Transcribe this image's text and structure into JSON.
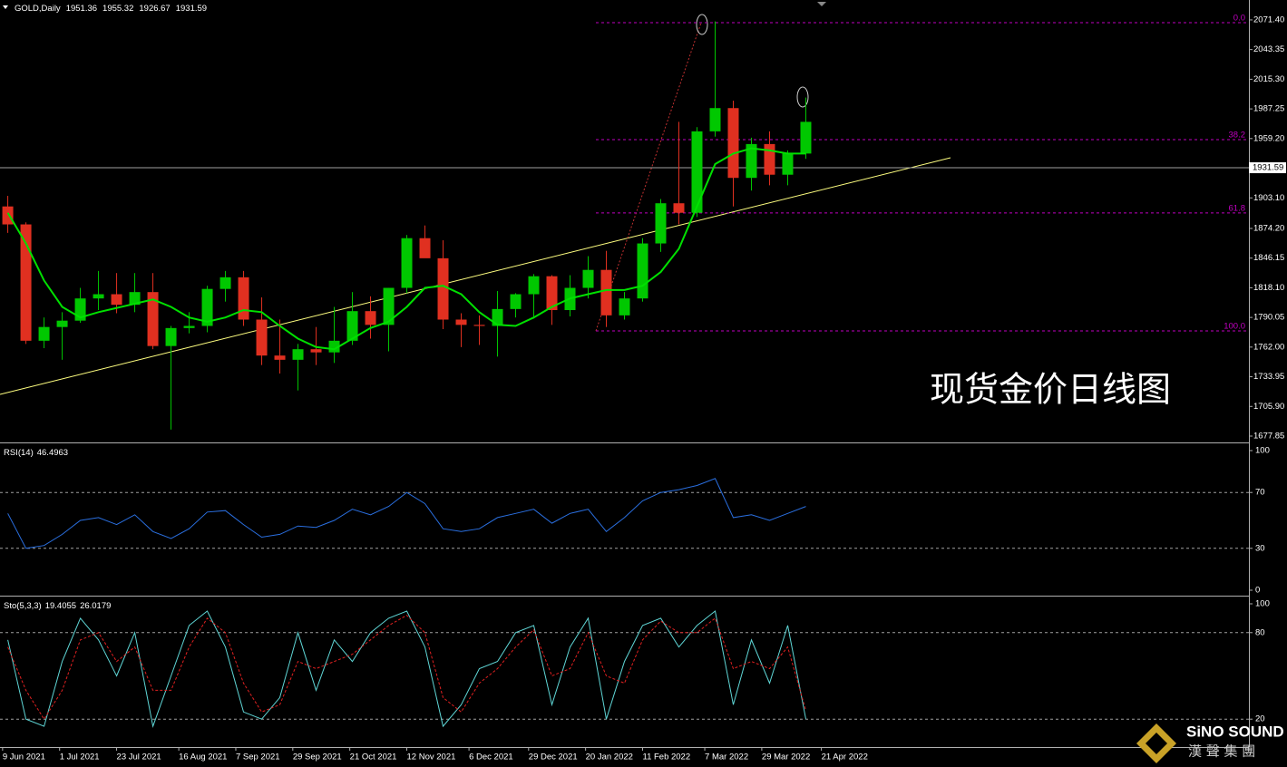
{
  "chart_data": [
    {
      "type": "candlestick",
      "symbol": "GOLD,Daily",
      "ohlc": [
        1951.36,
        1955.32,
        1926.67,
        1931.59
      ],
      "x": [
        "2021-06-11",
        "2021-06-18",
        "2021-06-25",
        "2021-07-02",
        "2021-07-09",
        "2021-07-16",
        "2021-07-23",
        "2021-07-30",
        "2021-08-06",
        "2021-08-13",
        "2021-08-20",
        "2021-08-27",
        "2021-09-03",
        "2021-09-10",
        "2021-09-17",
        "2021-09-24",
        "2021-10-01",
        "2021-10-08",
        "2021-10-15",
        "2021-10-22",
        "2021-10-29",
        "2021-11-05",
        "2021-11-12",
        "2021-11-19",
        "2021-11-26",
        "2021-12-03",
        "2021-12-10",
        "2021-12-17",
        "2021-12-24",
        "2021-12-31",
        "2022-01-07",
        "2022-01-14",
        "2022-01-21",
        "2022-01-28",
        "2022-02-04",
        "2022-02-11",
        "2022-02-18",
        "2022-02-25",
        "2022-03-04",
        "2022-03-11",
        "2022-03-18",
        "2022-03-25",
        "2022-04-01",
        "2022-04-08",
        "2022-04-15"
      ],
      "open": [
        1895,
        1878,
        1768,
        1781,
        1787,
        1808,
        1812,
        1802,
        1814,
        1763,
        1780,
        1782,
        1817,
        1828,
        1788,
        1754,
        1750,
        1760,
        1757,
        1768,
        1796,
        1783,
        1818,
        1865,
        1846,
        1788,
        1783,
        1782,
        1798,
        1812,
        1829,
        1797,
        1818,
        1835,
        1792,
        1808,
        1860,
        1898,
        1889,
        1966,
        1988,
        1922,
        1954,
        1925,
        1945
      ],
      "high": [
        1905,
        1880,
        1790,
        1795,
        1818,
        1834,
        1832,
        1832,
        1832,
        1782,
        1795,
        1820,
        1834,
        1834,
        1809,
        1788,
        1765,
        1781,
        1800,
        1814,
        1810,
        1818,
        1868,
        1877,
        1863,
        1794,
        1792,
        1815,
        1813,
        1831,
        1830,
        1830,
        1848,
        1853,
        1814,
        1865,
        1902,
        1975,
        1970,
        2070,
        1995,
        1960,
        1966,
        1948,
        1998
      ],
      "low": [
        1870,
        1765,
        1761,
        1750,
        1785,
        1797,
        1794,
        1795,
        1760,
        1684,
        1775,
        1776,
        1805,
        1782,
        1745,
        1737,
        1721,
        1745,
        1747,
        1764,
        1770,
        1758,
        1813,
        1847,
        1779,
        1762,
        1764,
        1753,
        1790,
        1789,
        1783,
        1791,
        1808,
        1781,
        1788,
        1805,
        1852,
        1878,
        1885,
        1961,
        1895,
        1910,
        1915,
        1915,
        1940
      ],
      "close": [
        1878,
        1768,
        1781,
        1787,
        1808,
        1812,
        1802,
        1814,
        1763,
        1780,
        1782,
        1817,
        1828,
        1788,
        1754,
        1750,
        1760,
        1757,
        1768,
        1796,
        1783,
        1818,
        1865,
        1846,
        1788,
        1783,
        1782,
        1798,
        1812,
        1829,
        1797,
        1818,
        1835,
        1792,
        1808,
        1860,
        1898,
        1889,
        1966,
        1988,
        1922,
        1954,
        1925,
        1945,
        1975
      ],
      "up_color": "#00c800",
      "down_color": "#e03020",
      "ma": {
        "color": "#00e000",
        "values": [
          1889,
          1860,
          1825,
          1800,
          1790,
          1795,
          1799,
          1803,
          1807,
          1800,
          1790,
          1786,
          1790,
          1797,
          1795,
          1782,
          1770,
          1762,
          1760,
          1770,
          1780,
          1786,
          1800,
          1818,
          1820,
          1812,
          1795,
          1783,
          1782,
          1790,
          1800,
          1808,
          1812,
          1816,
          1816,
          1820,
          1833,
          1855,
          1895,
          1935,
          1945,
          1950,
          1948,
          1945,
          1945
        ]
      },
      "fib_levels": [
        {
          "label": "0.0",
          "price": 2068.8
        },
        {
          "label": "38.2",
          "price": 1958.2
        },
        {
          "label": "61.8",
          "price": 1888.8
        },
        {
          "label": "100.0",
          "price": 1777.3
        }
      ],
      "fib_color": "#c000c0",
      "annotation": "现货金价日线图",
      "ylim": [
        1672.7,
        2088.5
      ],
      "yticks": [
        {
          "value": 2071.4,
          "label": "2071.40"
        },
        2043.35,
        {
          "value": 2015.3,
          "label": "2015.30"
        },
        1987.25,
        {
          "value": 1959.2,
          "label": "1959.20"
        },
        {
          "value": 1903.1,
          "label": "1903.10"
        },
        {
          "value": 1874.2,
          "label": "1874.20"
        },
        1846.15,
        {
          "value": 1818.1,
          "label": "1818.10"
        },
        1790.05,
        {
          "value": 1762,
          "label": "1762.00"
        },
        1733.95,
        {
          "value": 1705.9,
          "label": "1705.90"
        },
        1677.85
      ],
      "xlim": [
        "2021-06-08",
        "2022-10-03"
      ],
      "xticks": [
        {
          "value": "2021-06-09",
          "label": "9 Jun 2021"
        },
        {
          "value": "2021-07-01",
          "label": "1 Jul 2021"
        },
        {
          "value": "2021-07-23",
          "label": "23 Jul 2021"
        },
        {
          "value": "2021-08-16",
          "label": "16 Aug 2021"
        },
        {
          "value": "2021-09-07",
          "label": "7 Sep 2021"
        },
        {
          "value": "2021-09-29",
          "label": "29 Sep 2021"
        },
        {
          "value": "2021-10-21",
          "label": "21 Oct 2021"
        },
        {
          "value": "2021-11-12",
          "label": "12 Nov 2021"
        },
        {
          "value": "2021-12-06",
          "label": "6 Dec 2021"
        },
        {
          "value": "2021-12-29",
          "label": "29 Dec 2021"
        },
        {
          "value": "2022-01-20",
          "label": "20 Jan 2022"
        },
        {
          "value": "2022-02-11",
          "label": "11 Feb 2022"
        },
        {
          "value": "2022-03-07",
          "label": "7 Mar 2022"
        },
        {
          "value": "2022-03-29",
          "label": "29 Mar 2022"
        },
        {
          "value": "2022-04-21",
          "label": "21 Apr 2022"
        }
      ]
    },
    {
      "type": "line",
      "label": "RSI(14)",
      "current": [
        46.4963
      ],
      "series": [
        {
          "color": "#2a6fe0",
          "dash": false,
          "values": [
            55,
            30,
            32,
            40,
            50,
            52,
            47,
            54,
            42,
            37,
            44,
            56,
            57,
            47,
            38,
            40,
            46,
            45,
            50,
            58,
            54,
            60,
            70,
            62,
            44,
            42,
            44,
            52,
            55,
            58,
            48,
            55,
            58,
            42,
            52,
            64,
            70,
            72,
            75,
            80,
            52,
            54,
            50,
            55,
            60
          ]
        }
      ],
      "levels": [
        70,
        30
      ],
      "ylim": [
        0,
        100
      ],
      "yticks": [
        100,
        70,
        30,
        0
      ]
    },
    {
      "type": "line",
      "label": "Sto(5,3,3)",
      "current": [
        19.4055,
        26.0179
      ],
      "series": [
        {
          "color": "#5fd6d6",
          "dash": false,
          "values": [
            75,
            20,
            15,
            60,
            90,
            75,
            50,
            80,
            15,
            50,
            85,
            95,
            70,
            25,
            20,
            35,
            80,
            40,
            75,
            60,
            80,
            90,
            95,
            70,
            15,
            30,
            55,
            60,
            80,
            85,
            30,
            70,
            90,
            20,
            60,
            85,
            90,
            70,
            85,
            95,
            30,
            75,
            45,
            85,
            20
          ]
        },
        {
          "color": "#e02020",
          "dash": true,
          "values": [
            70,
            40,
            20,
            40,
            75,
            80,
            60,
            70,
            40,
            40,
            70,
            90,
            80,
            45,
            25,
            30,
            60,
            55,
            60,
            65,
            75,
            85,
            92,
            80,
            35,
            25,
            45,
            55,
            70,
            82,
            50,
            55,
            80,
            50,
            45,
            75,
            88,
            80,
            80,
            90,
            55,
            60,
            55,
            70,
            26
          ]
        }
      ],
      "levels": [
        80,
        20
      ],
      "ylim": [
        0,
        100
      ],
      "yticks": [
        100,
        80,
        20
      ]
    }
  ],
  "logo": {
    "brand": "SiNO SOUND",
    "subtitle": "漢 聲 集 團"
  }
}
